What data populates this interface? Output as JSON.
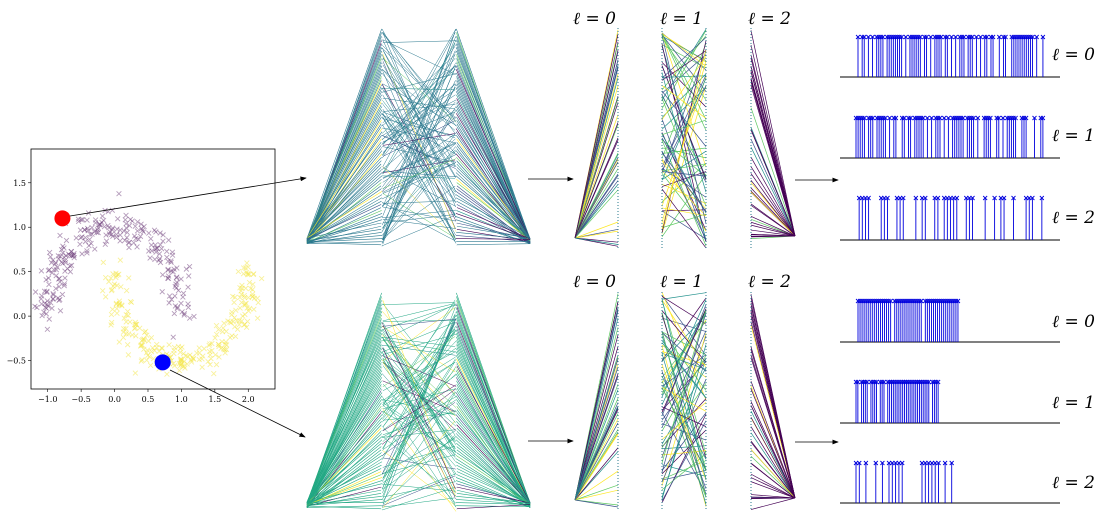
{
  "scatter": {
    "xticks": [
      "−1.0",
      "−0.5",
      "0.0",
      "0.5",
      "1.0",
      "1.5",
      "2.0"
    ],
    "yticks": [
      "1.5",
      "1.0",
      "0.5",
      "0.0",
      "−0.5"
    ],
    "xlim": [
      -1.25,
      2.4
    ],
    "ylim": [
      -0.82,
      1.88
    ],
    "class_colors": [
      "#6b3a78",
      "#f4e64a"
    ],
    "query_points": [
      {
        "x": -0.78,
        "y": 1.1,
        "color": "#ff0000"
      },
      {
        "x": 0.72,
        "y": -0.52,
        "color": "#0000ff"
      }
    ]
  },
  "layer_labels": {
    "top": [
      "ℓ = 0",
      "ℓ = 1",
      "ℓ = 2"
    ],
    "bottom": [
      "ℓ = 0",
      "ℓ = 1",
      "ℓ = 2"
    ]
  },
  "stem_labels": {
    "top": [
      "ℓ = 0",
      "ℓ = 1",
      "ℓ = 2"
    ],
    "bottom": [
      "ℓ = 0",
      "ℓ = 1",
      "ℓ = 2"
    ]
  },
  "colors": {
    "stem": "#0000dd",
    "baseline": "#000000",
    "viridis": [
      "#440154",
      "#3b528b",
      "#21918c",
      "#5ec962",
      "#fde725"
    ]
  }
}
